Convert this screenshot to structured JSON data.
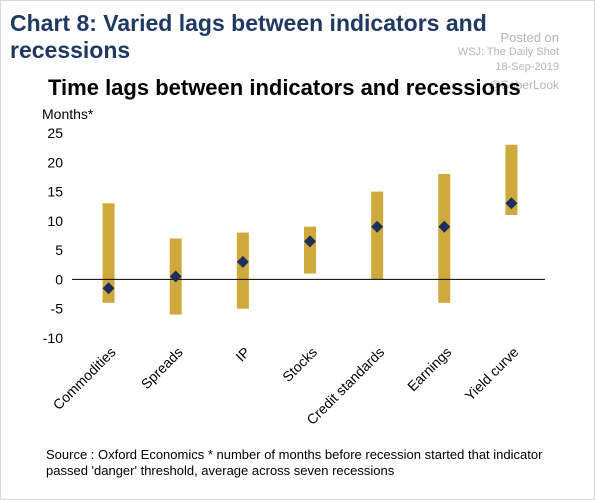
{
  "header": {
    "title": "Chart 8: Varied lags between indicators and recessions"
  },
  "watermark": {
    "line1": "Posted on",
    "line2": "WSJ: The Daily Shot",
    "line3": "18-Sep-2019",
    "line4": "@SoberLook"
  },
  "source_note": "Source : Oxford Economics  * number of months before recession started that indicator passed 'danger' threshold, average across seven recessions",
  "colors": {
    "title": "#1f3864",
    "bar": "#cfa93c",
    "marker": "#1f2f5c",
    "axis": "#000000"
  },
  "chart_data": {
    "type": "bar",
    "title": "Time lags between indicators and recessions",
    "ylabel": "Months*",
    "xlabel": "",
    "ylim": [
      -10,
      25
    ],
    "yticks": [
      25,
      20,
      15,
      10,
      5,
      0,
      -5,
      -10
    ],
    "grid": false,
    "categories": [
      "Commodities",
      "Spreads",
      "IP",
      "Stocks",
      "Credit standards",
      "Earnings",
      "Yield curve"
    ],
    "series": [
      {
        "role": "range",
        "low": [
          -4,
          -6,
          -5,
          1,
          0,
          -4,
          11
        ],
        "high": [
          13,
          7,
          8,
          9,
          15,
          18,
          23
        ]
      },
      {
        "role": "average",
        "values": [
          -1.5,
          0.5,
          3,
          6.5,
          9,
          9,
          13
        ]
      }
    ]
  }
}
